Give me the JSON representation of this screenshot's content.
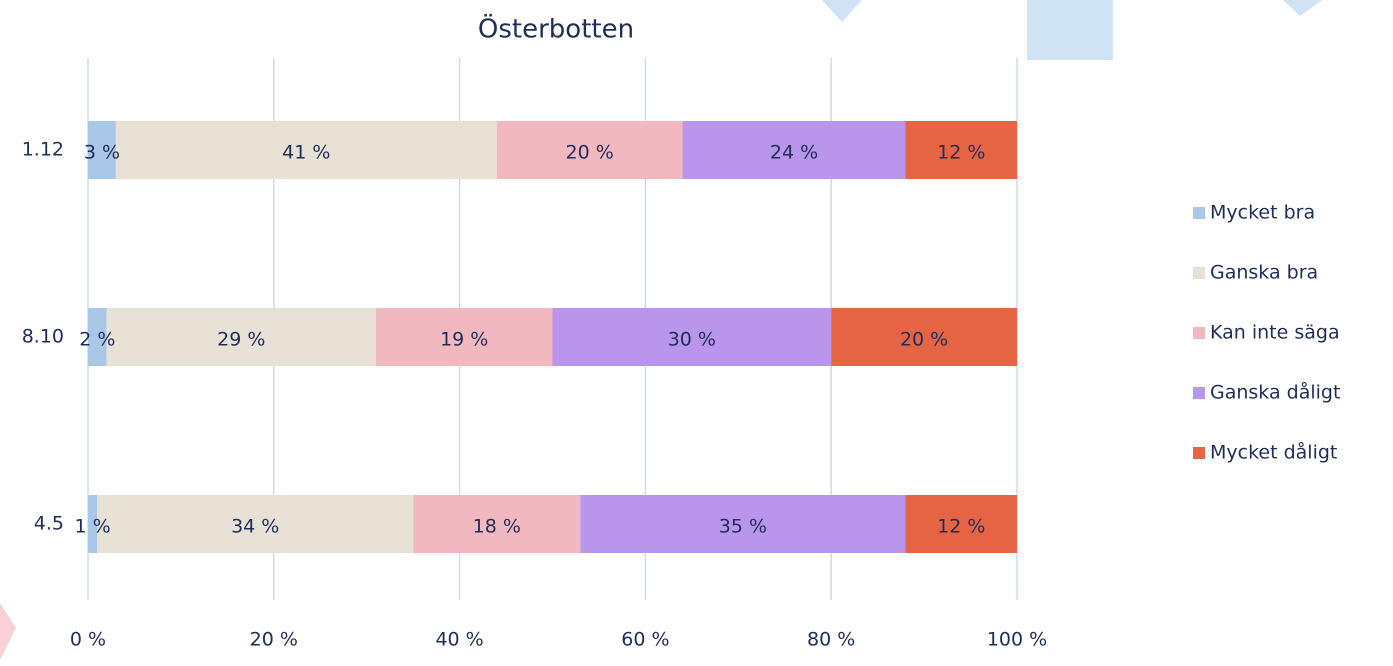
{
  "chart_data": {
    "type": "stacked_bar_horizontal",
    "title": "Österbotten",
    "categories": [
      "1.12",
      "8.10",
      "4.5"
    ],
    "series": [
      {
        "name": "Mycket bra",
        "color": "#a9c8e8",
        "values": [
          3,
          2,
          1
        ],
        "value_labels": [
          "3 %",
          "2 %",
          "1 %"
        ]
      },
      {
        "name": "Ganska bra",
        "color": "#e8e1d5",
        "values": [
          41,
          29,
          34
        ],
        "value_labels": [
          "41 %",
          "29 %",
          "34 %"
        ]
      },
      {
        "name": "Kan inte säga",
        "color": "#f2b8c0",
        "values": [
          20,
          19,
          18
        ],
        "value_labels": [
          "20 %",
          "19 %",
          "18 %"
        ]
      },
      {
        "name": "Ganska dåligt",
        "color": "#b995ec",
        "values": [
          24,
          30,
          35
        ],
        "value_labels": [
          "24 %",
          "30 %",
          "35 %"
        ]
      },
      {
        "name": "Mycket dåligt",
        "color": "#e56443",
        "values": [
          12,
          20,
          12
        ],
        "value_labels": [
          "12 %",
          "20 %",
          "12 %"
        ]
      }
    ],
    "xlim": [
      0,
      100
    ],
    "xticks": [
      {
        "value": 0,
        "label": "0 %"
      },
      {
        "value": 20,
        "label": "20 %"
      },
      {
        "value": 40,
        "label": "40 %"
      },
      {
        "value": 60,
        "label": "60 %"
      },
      {
        "value": 80,
        "label": "80 %"
      },
      {
        "value": 100,
        "label": "100 %"
      }
    ],
    "grid": true,
    "legend": "right"
  }
}
